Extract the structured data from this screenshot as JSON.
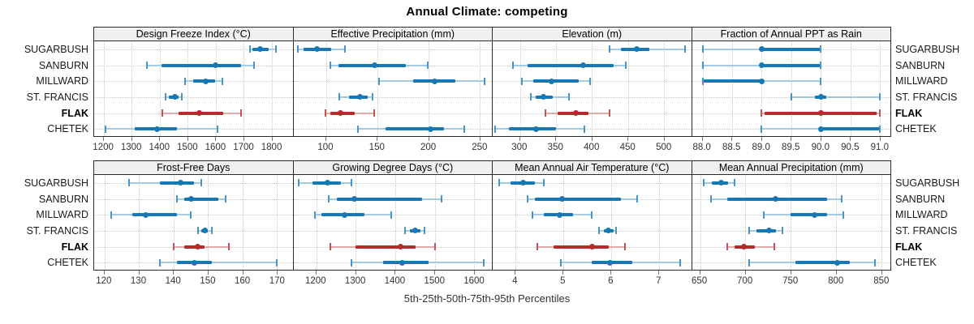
{
  "chart_data": {
    "type": "trellis-dotplot",
    "title": "Annual Climate: competing",
    "footer": "5th-25th-50th-75th-95th Percentiles",
    "legend_note": "values per site are [5th,25th,50th,75th,95th] percentiles",
    "sites": [
      "SUGARBUSH",
      "SANBURN",
      "MILLWARD",
      "ST. FRANCIS",
      "FLAK",
      "CHETEK"
    ],
    "highlight_site": "FLAK",
    "colors": {
      "blue": "#1878b4",
      "blue_light": "#a5cbe4",
      "blue_cap": "#4796c8",
      "red": "#b52a2a",
      "red_light": "#e0aba9",
      "red_cap": "#c55353",
      "strip_bg": "#f0f0f0",
      "grid": "#c9c9c9"
    },
    "panels": [
      {
        "title": "Design Freeze Index (°C)",
        "ticks": [
          1200,
          1300,
          1400,
          1500,
          1600,
          1700,
          1800
        ],
        "tick_labels": [
          "1200",
          "1300",
          "1400",
          "1500",
          "1600",
          "1700",
          "1800"
        ],
        "range": [
          1165,
          1875
        ],
        "values": [
          [
            1722,
            1732,
            1760,
            1790,
            1815
          ],
          [
            1355,
            1405,
            1600,
            1690,
            1738
          ],
          [
            1490,
            1520,
            1565,
            1598,
            1625
          ],
          [
            1420,
            1433,
            1455,
            1468,
            1480
          ],
          [
            1410,
            1468,
            1540,
            1628,
            1690
          ],
          [
            1205,
            1310,
            1390,
            1460,
            1605
          ]
        ]
      },
      {
        "title": "Effective Precipitation (mm)",
        "ticks": [
          100,
          150,
          200,
          250
        ],
        "tick_labels": [
          "100",
          "150",
          "200",
          "250"
        ],
        "range": [
          68,
          262
        ],
        "values": [
          [
            72,
            78,
            91,
            105,
            118
          ],
          [
            104,
            112,
            147,
            178,
            199
          ],
          [
            152,
            185,
            206,
            226,
            255
          ],
          [
            113,
            122,
            133,
            141,
            145
          ],
          [
            99,
            104,
            114,
            128,
            147
          ],
          [
            131,
            158,
            202,
            215,
            235
          ]
        ]
      },
      {
        "title": "Elevation (m)",
        "ticks": [
          300,
          350,
          400,
          450,
          500
        ],
        "tick_labels": [
          "300",
          "350",
          "400",
          "450",
          "500"
        ],
        "range": [
          262,
          538
        ],
        "values": [
          [
            425,
            440,
            462,
            480,
            530
          ],
          [
            290,
            310,
            388,
            430,
            447
          ],
          [
            303,
            318,
            344,
            382,
            398
          ],
          [
            315,
            322,
            333,
            345,
            368
          ],
          [
            335,
            352,
            378,
            395,
            425
          ],
          [
            265,
            285,
            322,
            350,
            390
          ]
        ]
      },
      {
        "title": "Fraction of Annual PPT as Rain",
        "ticks": [
          88.0,
          88.5,
          89.0,
          89.5,
          90.0,
          90.5,
          91.0
        ],
        "tick_labels": [
          "88.0",
          "88.5",
          "89.0",
          "89.5",
          "90.0",
          "90.5",
          "91.0"
        ],
        "range": [
          87.82,
          91.18
        ],
        "values": [
          [
            88,
            89,
            89,
            90,
            90
          ],
          [
            88,
            89,
            89,
            90,
            90
          ],
          [
            88,
            88,
            89,
            89,
            90
          ],
          [
            89.5,
            89.9,
            90,
            90.1,
            91
          ],
          [
            89,
            89.05,
            90,
            90.95,
            91
          ],
          [
            89,
            90,
            90,
            91,
            91
          ]
        ]
      },
      {
        "title": "Frost-Free Days",
        "ticks": [
          120,
          130,
          140,
          150,
          160,
          170
        ],
        "tick_labels": [
          "120",
          "130",
          "140",
          "150",
          "160",
          "170"
        ],
        "range": [
          117,
          174.5
        ],
        "values": [
          [
            127,
            136,
            142,
            146,
            148
          ],
          [
            141,
            143,
            145,
            153,
            155
          ],
          [
            122,
            128,
            132,
            141,
            145
          ],
          [
            147,
            148,
            149,
            150,
            151
          ],
          [
            140,
            143,
            147,
            149,
            156
          ],
          [
            136,
            141,
            146,
            151,
            170
          ]
        ]
      },
      {
        "title": "Growing Degree Days (°C)",
        "ticks": [
          1200,
          1300,
          1400,
          1500,
          1600
        ],
        "tick_labels": [
          "1200",
          "1300",
          "1400",
          "1500",
          "1600"
        ],
        "range": [
          1142,
          1645
        ],
        "values": [
          [
            1155,
            1190,
            1228,
            1262,
            1290
          ],
          [
            1232,
            1252,
            1297,
            1468,
            1518
          ],
          [
            1197,
            1212,
            1272,
            1322,
            1390
          ],
          [
            1425,
            1438,
            1450,
            1465,
            1475
          ],
          [
            1235,
            1300,
            1413,
            1452,
            1500
          ],
          [
            1290,
            1370,
            1418,
            1485,
            1625
          ]
        ]
      },
      {
        "title": "Mean Annual Air Temperature (°C)",
        "ticks": [
          4,
          5,
          6,
          7
        ],
        "tick_labels": [
          "4",
          "5",
          "6",
          "7"
        ],
        "range": [
          3.52,
          7.68
        ],
        "values": [
          [
            3.65,
            3.9,
            4.15,
            4.4,
            4.6
          ],
          [
            4.25,
            4.4,
            4.97,
            6.2,
            6.55
          ],
          [
            4.35,
            4.6,
            4.93,
            5.2,
            5.6
          ],
          [
            5.75,
            5.85,
            5.95,
            6.05,
            6.1
          ],
          [
            4.45,
            4.8,
            5.6,
            5.95,
            6.3
          ],
          [
            4.95,
            5.6,
            5.98,
            6.45,
            7.45
          ]
        ]
      },
      {
        "title": "Mean Annual Precipitation (mm)",
        "ticks": [
          650,
          700,
          750,
          800,
          850
        ],
        "tick_labels": [
          "650",
          "700",
          "750",
          "800",
          "850"
        ],
        "range": [
          641,
          860
        ],
        "values": [
          [
            654,
            663,
            673,
            681,
            688
          ],
          [
            662,
            680,
            733,
            790,
            806
          ],
          [
            720,
            750,
            776,
            790,
            808
          ],
          [
            704,
            712,
            726,
            734,
            741
          ],
          [
            680,
            688,
            698,
            710,
            732
          ],
          [
            704,
            755,
            801,
            815,
            843
          ]
        ]
      }
    ]
  }
}
